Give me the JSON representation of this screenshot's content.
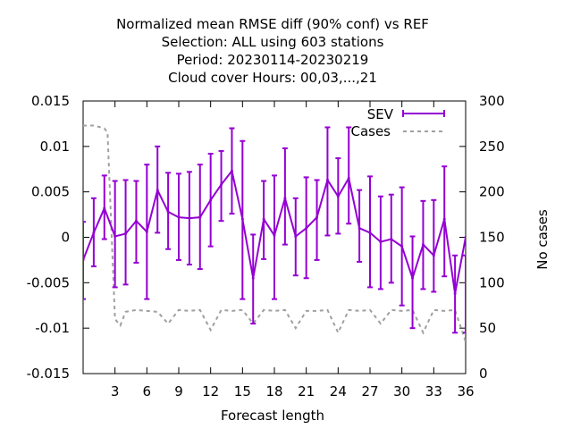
{
  "chart_data": {
    "type": "line",
    "title_lines": [
      "Normalized mean RMSE diff (90% conf) vs REF",
      "Selection: ALL using   603 stations",
      "Period: 20230114-20230219",
      "Cloud cover   Hours:  00,03,...,21"
    ],
    "xlabel": "Forecast length",
    "ylabel": "",
    "y2label": "No cases",
    "xlim": [
      0,
      36
    ],
    "ylim": [
      -0.015,
      0.015
    ],
    "y2lim": [
      0,
      300
    ],
    "x_ticks": [
      3,
      6,
      9,
      12,
      15,
      18,
      21,
      24,
      27,
      30,
      33,
      36
    ],
    "y_ticks": [
      "0.015",
      "0.01",
      "0.005",
      "0",
      "-0.005",
      "-0.01",
      "-0.015"
    ],
    "y_tick_values": [
      0.015,
      0.01,
      0.005,
      0,
      -0.005,
      -0.01,
      -0.015
    ],
    "y2_ticks": [
      "300",
      "250",
      "200",
      "150",
      "100",
      "50",
      "0"
    ],
    "y2_tick_values": [
      300,
      250,
      200,
      150,
      100,
      50,
      0
    ],
    "legend_position": "top-right",
    "series": [
      {
        "name": "SEV",
        "color": "#9400d3",
        "axis": "y",
        "x": [
          0,
          1,
          2,
          3,
          4,
          5,
          6,
          7,
          8,
          9,
          10,
          11,
          12,
          13,
          14,
          15,
          16,
          17,
          18,
          19,
          20,
          21,
          22,
          23,
          24,
          25,
          26,
          27,
          28,
          29,
          30,
          31,
          32,
          33,
          34,
          35,
          36
        ],
        "values": [
          -0.0025,
          0.0005,
          0.0032,
          0.0001,
          0.0004,
          0.0018,
          0.0006,
          0.0052,
          0.0028,
          0.0022,
          0.0021,
          0.0022,
          0.0041,
          0.0058,
          0.0073,
          0.002,
          -0.0045,
          0.002,
          0.0002,
          0.0043,
          0.0001,
          0.001,
          0.0022,
          0.0063,
          0.0045,
          0.0065,
          0.001,
          0.0005,
          -0.0005,
          -0.0002,
          -0.001,
          -0.0045,
          -0.0008,
          -0.002,
          0.002,
          -0.0062,
          0.0
        ],
        "err_low": [
          -0.0068,
          -0.0032,
          -0.0002,
          -0.0055,
          -0.0052,
          -0.0028,
          -0.0068,
          0.0005,
          -0.0013,
          -0.0025,
          -0.003,
          -0.0035,
          -0.001,
          0.0018,
          0.0026,
          -0.0068,
          -0.0095,
          -0.0024,
          -0.0068,
          -0.0008,
          -0.0042,
          -0.0045,
          -0.0025,
          0.0002,
          0.0004,
          0.0015,
          -0.0027,
          -0.0055,
          -0.0057,
          -0.005,
          -0.0075,
          -0.01,
          -0.0057,
          -0.006,
          -0.0043,
          -0.0105,
          -0.0105
        ],
        "err_high": [
          0.0017,
          0.0043,
          0.0068,
          0.0062,
          0.0063,
          0.0062,
          0.008,
          0.01,
          0.0071,
          0.007,
          0.0072,
          0.008,
          0.0092,
          0.0095,
          0.012,
          0.0106,
          0.0003,
          0.0062,
          0.0068,
          0.0098,
          0.0043,
          0.0066,
          0.0063,
          0.0121,
          0.0087,
          0.0121,
          0.0052,
          0.0067,
          0.0045,
          0.0047,
          0.0055,
          0.0001,
          0.004,
          0.0041,
          0.0078,
          -0.002,
          -0.002
        ]
      },
      {
        "name": "Cases",
        "color": "#a0a0a0",
        "axis": "y2",
        "x": [
          0,
          1,
          2,
          2.3,
          3,
          3.5,
          4,
          5,
          6,
          7,
          8,
          9,
          10,
          11,
          12,
          13,
          14,
          15,
          16,
          17,
          18,
          19,
          20,
          21,
          22,
          23,
          24,
          25,
          26,
          27,
          28,
          29,
          30,
          31,
          32,
          33,
          34,
          35,
          36
        ],
        "values": [
          273,
          273,
          270,
          265,
          60,
          53,
          68,
          70,
          69,
          68,
          55,
          70,
          69,
          70,
          48,
          70,
          69,
          70,
          55,
          70,
          69,
          70,
          50,
          69,
          69,
          70,
          45,
          70,
          69,
          70,
          55,
          70,
          69,
          70,
          45,
          70,
          69,
          70,
          35
        ]
      }
    ],
    "grid": false
  }
}
